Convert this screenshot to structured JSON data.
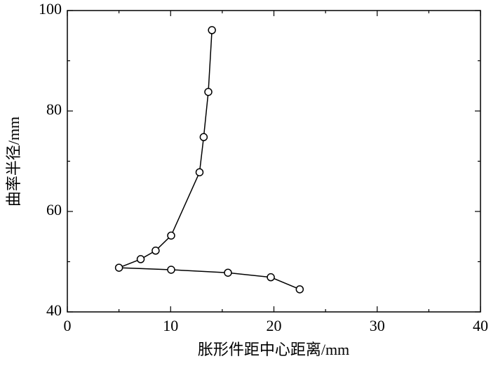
{
  "chart_data": {
    "type": "line",
    "x_label": "胀形件距中心距离/mm",
    "y_label": "曲率半径/mm",
    "series": [
      {
        "color": "#000000",
        "x": [
          14.0,
          13.65,
          13.2,
          12.8,
          10.05,
          8.55,
          7.1,
          5.0,
          10.05,
          15.55,
          19.7,
          22.5
        ],
        "values": [
          96.1,
          83.8,
          74.8,
          67.8,
          55.2,
          52.2,
          50.5,
          48.8,
          48.4,
          47.8,
          46.9,
          44.5
        ]
      }
    ],
    "xlim": [
      0,
      40
    ],
    "xticks": [
      0,
      10,
      20,
      30,
      40
    ],
    "xminorticks": [
      5,
      15,
      25,
      35
    ],
    "ylim": [
      40,
      100
    ],
    "yticks": [
      40,
      60,
      80,
      100
    ],
    "yminorticks": [
      50,
      70,
      90
    ],
    "marker": "circle"
  }
}
